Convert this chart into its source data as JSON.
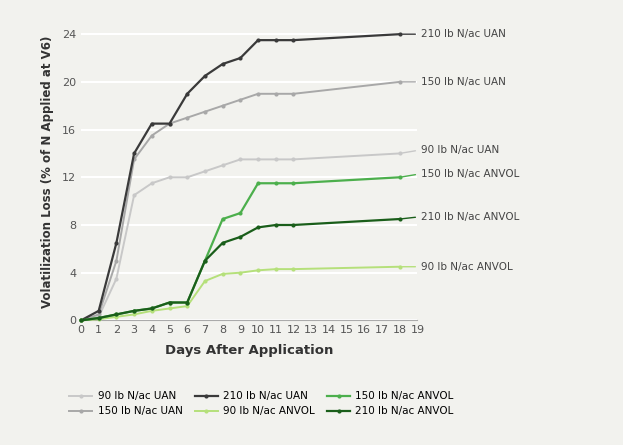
{
  "title": "",
  "xlabel": "Days After Application",
  "ylabel": "Volatilization Loss (% of N Applied at V6)",
  "xlim": [
    0,
    18.5
  ],
  "ylim": [
    0,
    25
  ],
  "xticks": [
    0,
    1,
    2,
    3,
    4,
    5,
    6,
    7,
    8,
    9,
    10,
    11,
    12,
    13,
    14,
    15,
    16,
    17,
    18,
    19
  ],
  "yticks": [
    0,
    4,
    8,
    12,
    16,
    20,
    24
  ],
  "series": [
    {
      "label": "90 lb N/ac UAN",
      "color": "#c8c8c8",
      "linewidth": 1.4,
      "marker": "o",
      "markersize": 3,
      "x": [
        0,
        1,
        2,
        3,
        4,
        5,
        6,
        7,
        8,
        9,
        10,
        11,
        12,
        18
      ],
      "y": [
        0,
        0.3,
        3.5,
        10.5,
        11.5,
        12.0,
        12.0,
        12.5,
        13.0,
        13.5,
        13.5,
        13.5,
        13.5,
        14.0
      ]
    },
    {
      "label": "150 lb N/ac UAN",
      "color": "#a8a8a8",
      "linewidth": 1.4,
      "marker": "o",
      "markersize": 3,
      "x": [
        0,
        1,
        2,
        3,
        4,
        5,
        6,
        7,
        8,
        9,
        10,
        11,
        12,
        18
      ],
      "y": [
        0,
        0.5,
        5.0,
        13.5,
        15.5,
        16.5,
        17.0,
        17.5,
        18.0,
        18.5,
        19.0,
        19.0,
        19.0,
        20.0
      ]
    },
    {
      "label": "210 lb N/ac UAN",
      "color": "#3a3a3a",
      "linewidth": 1.6,
      "marker": "o",
      "markersize": 3,
      "x": [
        0,
        1,
        2,
        3,
        4,
        5,
        6,
        7,
        8,
        9,
        10,
        11,
        12,
        18
      ],
      "y": [
        0,
        0.8,
        6.5,
        14.0,
        16.5,
        16.5,
        19.0,
        20.5,
        21.5,
        22.0,
        23.5,
        23.5,
        23.5,
        24.0
      ]
    },
    {
      "label": "90 lb N/ac ANVOL",
      "color": "#b5e07a",
      "linewidth": 1.4,
      "marker": "o",
      "markersize": 3,
      "x": [
        0,
        1,
        2,
        3,
        4,
        5,
        6,
        7,
        8,
        9,
        10,
        11,
        12,
        18
      ],
      "y": [
        0,
        0.1,
        0.3,
        0.5,
        0.8,
        1.0,
        1.2,
        3.3,
        3.9,
        4.0,
        4.2,
        4.3,
        4.3,
        4.5
      ]
    },
    {
      "label": "150 lb N/ac ANVOL",
      "color": "#4caf4c",
      "linewidth": 1.6,
      "marker": "o",
      "markersize": 3,
      "x": [
        0,
        1,
        2,
        3,
        4,
        5,
        6,
        7,
        8,
        9,
        10,
        11,
        12,
        18
      ],
      "y": [
        0,
        0.2,
        0.5,
        0.8,
        1.0,
        1.5,
        1.5,
        5.0,
        8.5,
        9.0,
        11.5,
        11.5,
        11.5,
        12.0
      ]
    },
    {
      "label": "210 lb N/ac ANVOL",
      "color": "#1a5e1a",
      "linewidth": 1.6,
      "marker": "o",
      "markersize": 3,
      "x": [
        0,
        1,
        2,
        3,
        4,
        5,
        6,
        7,
        8,
        9,
        10,
        11,
        12,
        18
      ],
      "y": [
        0,
        0.2,
        0.5,
        0.8,
        1.0,
        1.5,
        1.5,
        5.0,
        6.5,
        7.0,
        7.8,
        8.0,
        8.0,
        8.5
      ]
    }
  ],
  "annotations": [
    {
      "text": "210 lb N/ac UAN",
      "series_idx": 2,
      "ann_y": 24.0
    },
    {
      "text": "150 lb N/ac UAN",
      "series_idx": 1,
      "ann_y": 20.0
    },
    {
      "text": "90 lb N/ac UAN",
      "series_idx": 0,
      "ann_y": 14.3
    },
    {
      "text": "150 lb N/ac ANVOL",
      "series_idx": 4,
      "ann_y": 12.3
    },
    {
      "text": "210 lb N/ac ANVOL",
      "series_idx": 5,
      "ann_y": 8.7
    },
    {
      "text": "90 lb N/ac ANVOL",
      "series_idx": 3,
      "ann_y": 4.5
    }
  ],
  "legend_order": [
    0,
    1,
    2,
    3,
    4,
    5
  ],
  "legend_ncol": 3,
  "background_color": "#f2f2ee",
  "grid_color": "#ffffff",
  "legend_fontsize": 7.5,
  "axis_label_fontsize": 9.5,
  "tick_fontsize": 8,
  "annotation_fontsize": 7.5
}
